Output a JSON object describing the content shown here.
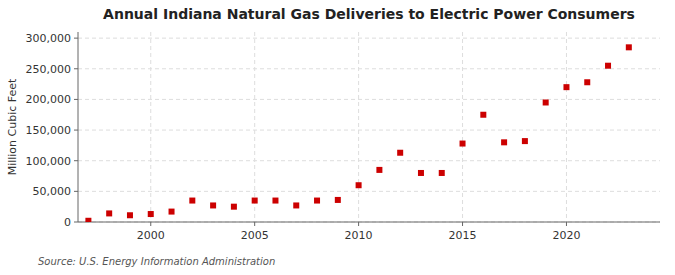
{
  "chart_data": {
    "type": "scatter",
    "title": "Annual Indiana Natural Gas Deliveries to Electric Power Consumers",
    "ylabel": "Million Cubic Feet",
    "annotations": [
      "Source: U.S. Energy Information Administration"
    ],
    "x": [
      1997,
      1998,
      1999,
      2000,
      2001,
      2002,
      2003,
      2004,
      2005,
      2006,
      2007,
      2008,
      2009,
      2010,
      2011,
      2012,
      2013,
      2014,
      2015,
      2016,
      2017,
      2018,
      2019,
      2020,
      2021,
      2022,
      2023
    ],
    "values": [
      2000,
      14000,
      11000,
      13000,
      17000,
      35000,
      27000,
      25000,
      35000,
      35000,
      27000,
      35000,
      36000,
      60000,
      85000,
      113000,
      80000,
      80000,
      128000,
      175000,
      130000,
      132000,
      195000,
      220000,
      228000,
      255000,
      285000
    ],
    "color": "#cc0000",
    "marker": "square",
    "xlim": [
      1996.5,
      2024.5
    ],
    "ylim": [
      0,
      310000
    ],
    "xticks": [
      2000,
      2005,
      2010,
      2015,
      2020
    ],
    "yticks": [
      0,
      {
        "value": 50000,
        "label": "50,000"
      },
      {
        "value": 100000,
        "label": "100,000"
      },
      {
        "value": 150000,
        "label": "150,000"
      },
      {
        "value": 200000,
        "label": "200,000"
      },
      {
        "value": 250000,
        "label": "250,000"
      },
      {
        "value": 300000,
        "label": "300,000"
      }
    ],
    "grid": true
  }
}
